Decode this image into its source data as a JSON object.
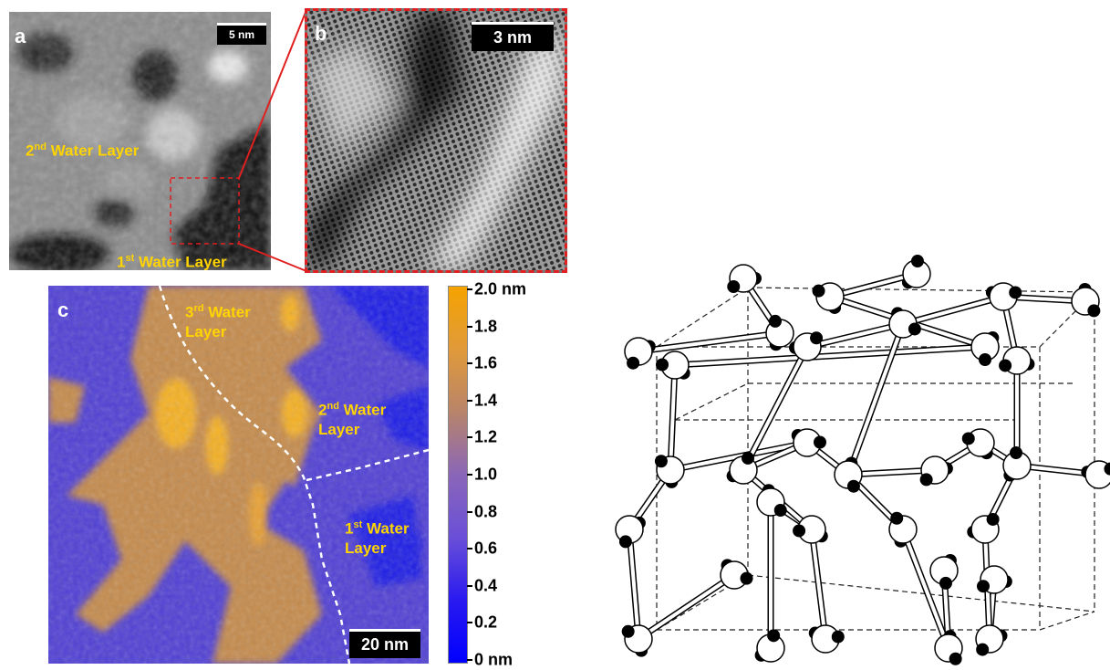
{
  "panel_a": {
    "letter": "a",
    "scale_bar": "5 nm",
    "label_2nd": {
      "ord": "2",
      "sup": "nd",
      "rest": " Water Layer"
    },
    "label_1st": {
      "ord": "1",
      "sup": "st",
      "rest": " Water Layer"
    }
  },
  "panel_b": {
    "letter": "b",
    "scale_bar": "3 nm"
  },
  "panel_c": {
    "letter": "c",
    "scale_bar": "20 nm",
    "label_3rd": {
      "ord": "3",
      "sup": "rd",
      "line1": " Water",
      "line2": "Layer"
    },
    "label_2nd": {
      "ord": "2",
      "sup": "nd",
      "line1": " Water",
      "line2": "Layer"
    },
    "label_1st": {
      "ord": "1",
      "sup": "st",
      "line1": " Water",
      "line2": "Layer"
    },
    "colorbar": {
      "ticks": [
        "2.0 nm",
        "1.8",
        "1.6",
        "1.4",
        "1.2",
        "1.0",
        "0.8",
        "0.6",
        "0.4",
        "0.2",
        "0 nm"
      ],
      "colors": [
        "#f5a300",
        "#e09a3a",
        "#b8846a",
        "#8a66b8",
        "#6a4fd8",
        "#2a1af0",
        "#0000ff"
      ]
    },
    "height_colors": {
      "low": "#4f3fd4",
      "mid": "#c48a4c",
      "high": "#f5b020",
      "hole": "#1a1ae6"
    }
  },
  "ice_structure": {
    "oxygen_color": "#ffffff",
    "hydrogen_color": "#000000"
  }
}
